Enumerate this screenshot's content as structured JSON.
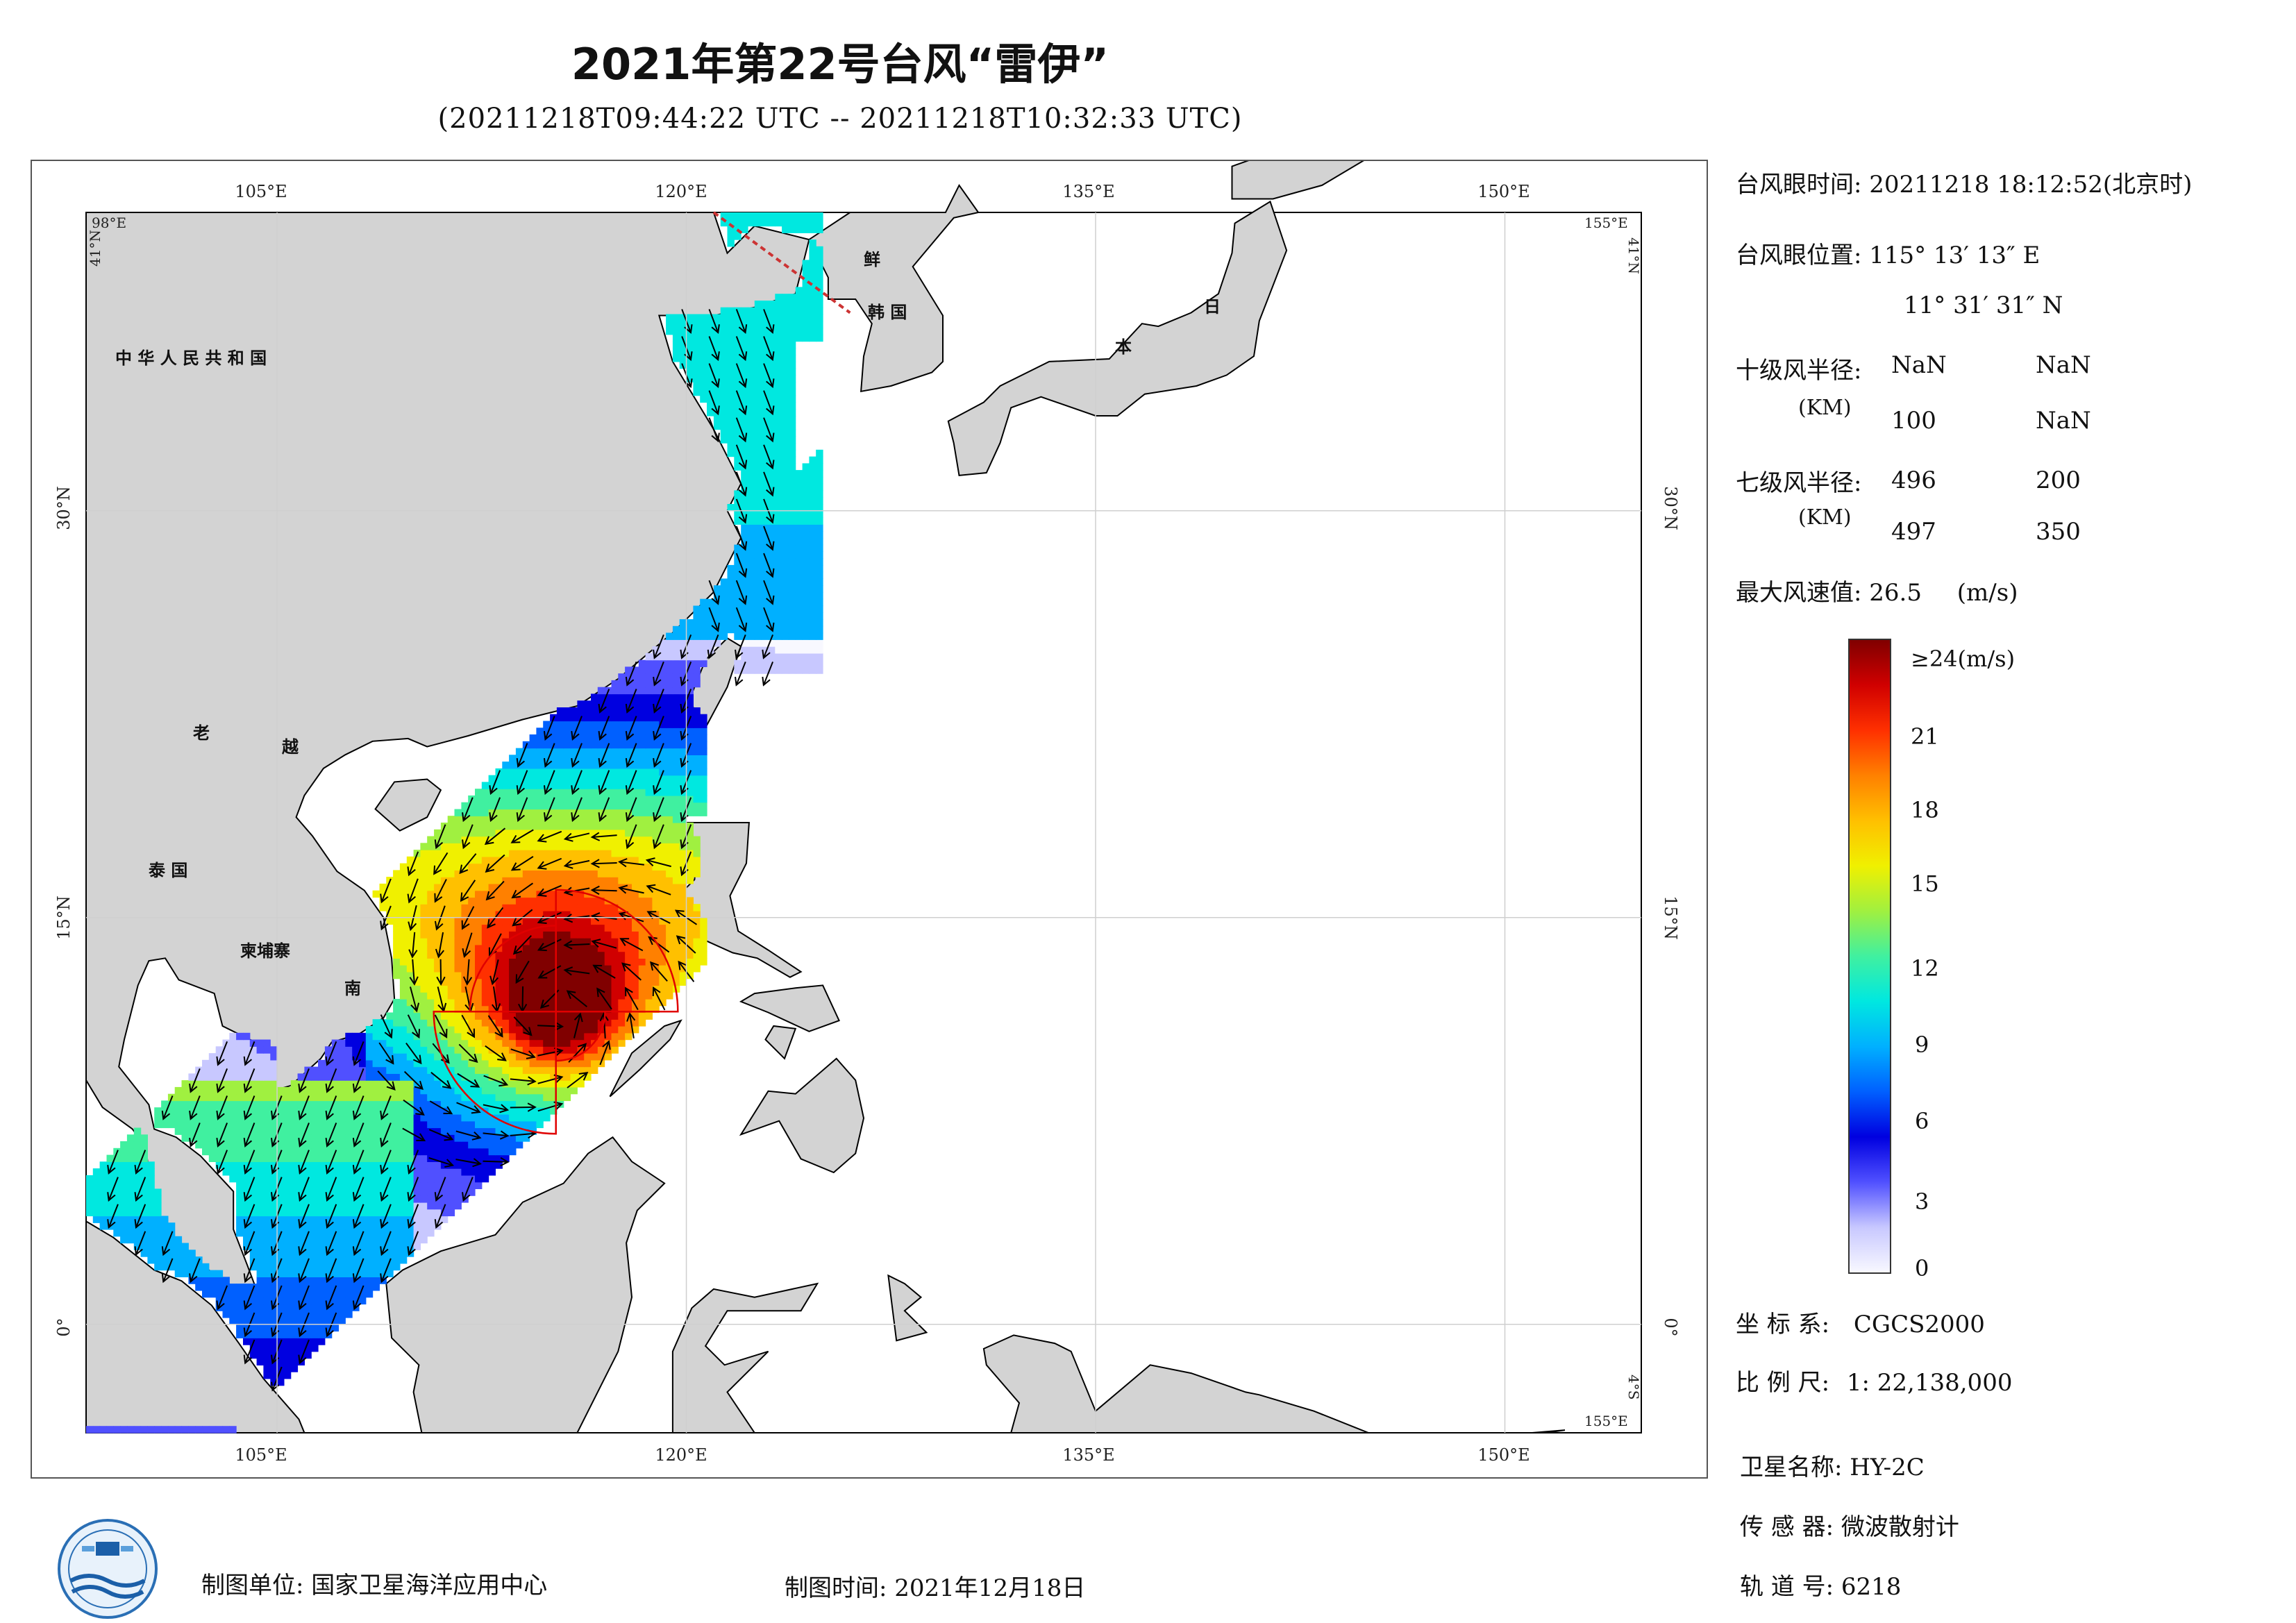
{
  "title": "2021年第22号台风“雷伊”",
  "subtitle": "(20211218T09:44:22 UTC -- 20211218T10:32:33 UTC)",
  "map": {
    "lon_ticks": [
      "105°E",
      "120°E",
      "135°E",
      "150°E"
    ],
    "lat_ticks": [
      "30°N",
      "15°N",
      "0°"
    ],
    "corner_labels": {
      "top_left_lon": "98°E",
      "top_left_lat": "41°N",
      "top_right_lon": "155°E",
      "top_right_lat": "41°N",
      "bottom_right_lat": "4°S",
      "bottom_right_lon": "155°E"
    },
    "country_labels": [
      "中 华 人 民 共 和 国",
      "老",
      "越",
      "泰 国",
      "柬埔寨",
      "南",
      "鲜",
      "韩 国",
      "日",
      "本"
    ],
    "land_color": "#d3d3d3",
    "coast_color": "#000000",
    "wind_radius_color": "#e00000"
  },
  "info": {
    "eye_time_label": "台风眼时间:",
    "eye_time_value": "20211218 18:12:52(北京时)",
    "eye_pos_label": "台风眼位置:",
    "eye_pos_lon": "115° 13′ 13″ E",
    "eye_pos_lat": "11° 31′ 31″ N",
    "r10_label": "十级风半径:",
    "r10_unit": "(KM)",
    "r10_values": [
      "NaN",
      "NaN",
      "100",
      "NaN"
    ],
    "r7_label": "七级风半径:",
    "r7_unit": "(KM)",
    "r7_values": [
      "496",
      "200",
      "497",
      "350"
    ],
    "max_wind_label": "最大风速值:",
    "max_wind_value": "26.5",
    "max_wind_unit": "(m/s)"
  },
  "colorbar": {
    "labels": [
      "≥24(m/s)",
      "21",
      "18",
      "15",
      "12",
      "9",
      "6",
      "3",
      "0"
    ],
    "colors": [
      "#f8f8ff",
      "#c8c8ff",
      "#5050ff",
      "#0000e0",
      "#0060ff",
      "#00b0ff",
      "#00e8e0",
      "#40f0a0",
      "#a0f040",
      "#f0f000",
      "#ffc000",
      "#ff8000",
      "#ff3000",
      "#d00000",
      "#800000"
    ]
  },
  "meta": {
    "crs_label": "坐 标 系:",
    "crs_value": "CGCS2000",
    "scale_label": "比 例 尺:",
    "scale_value": "1: 22,138,000",
    "satellite_label": "卫星名称:",
    "satellite_value": "HY-2C",
    "sensor_label": "传 感 器:",
    "sensor_value": "微波散射计",
    "orbit_label": "轨 道 号:",
    "orbit_value": "6218"
  },
  "footer": {
    "maker_label": "制图单位:",
    "maker_value": "国家卫星海洋应用中心",
    "date_label": "制图时间:",
    "date_value": "2021年12月18日"
  }
}
